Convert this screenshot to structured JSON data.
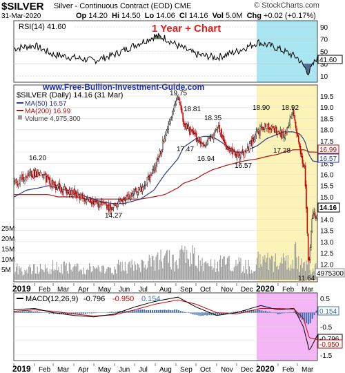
{
  "header": {
    "symbol": "$SILVER",
    "subtitle": "Silver - Continuous Contract (EOD)  CME",
    "brand": "© StockCharts.com",
    "date": "31-Mar-2020",
    "op_label": "Op",
    "op": "14.20",
    "hi_label": "Hi",
    "hi": "14.50",
    "lo_label": "Lo",
    "lo": "14.06",
    "cl_label": "Cl",
    "cl": "14.16",
    "vol_label": "Vol",
    "vol": "5.0M",
    "chg_label": "Chg",
    "chg": "+0.02 (+0.17%)"
  },
  "rsi_panel": {
    "legend": "RSI(14) 41.60",
    "title": "1 Year + Chart",
    "ticks": [
      "90",
      "70",
      "50",
      "30",
      "10"
    ],
    "current": "41.60"
  },
  "price_panel": {
    "watermark": "www.Free-Bullion-Investment-Guide.com",
    "legend_symbol": "$SILVER (Daily) 14.16 (31 Mar)",
    "legend_ma50": "MA(50) 16.57",
    "legend_ma200": "MA(200) 16.99",
    "legend_volume": "Volume 4,975,300",
    "price_ticks": [
      "19.5",
      "19.0",
      "18.5",
      "18.0",
      "17.5",
      "17.0",
      "16.5",
      "16.0",
      "15.5",
      "15.0",
      "14.5",
      "14.0",
      "13.5",
      "13.0",
      "12.5",
      "12.0"
    ],
    "volume_ticks": [
      "25M",
      "20M",
      "15M",
      "10M",
      "5M"
    ],
    "tag_ma200": "16.99",
    "tag_ma50": "16.57",
    "tag_close": "14.16",
    "tag_volume": "4975300",
    "annotations": [
      "19.75",
      "18.81",
      "18.35",
      "18.90",
      "18.92",
      "17.47",
      "16.94",
      "16.57",
      "17.28",
      "16.20",
      "14.27",
      "11.64"
    ]
  },
  "macd_panel": {
    "legend_label": "MACD(12,26,9)",
    "legend_v1": "-0.796",
    "legend_v2": "-0.950",
    "legend_v3": "0.154",
    "ticks": [
      "0.5",
      "0.0",
      "-0.5",
      "-1.0",
      "-1.5"
    ],
    "tag_hist": "0.154",
    "tag_macd": "-0.796",
    "tag_signal": "-0.950"
  },
  "x_axis_labels": [
    "2019",
    "Feb",
    "Mar",
    "Apr",
    "May",
    "Jun",
    "Jul",
    "Aug",
    "Sep",
    "Oct",
    "Nov",
    "Dec",
    "2020",
    "Feb",
    "Mar"
  ],
  "colors": {
    "up_candle": "#000000",
    "down_candle": "#cc0000",
    "ma50": "#2b3a8c",
    "ma200": "#aa1111",
    "volume_bar": "#9a9a9a",
    "rsi_line": "#000000",
    "rsi_fill_overbought": "#5d7d5d",
    "rsi_fill_oversold": "#4d6a8a",
    "highlight_yellow": "#fcf3b8",
    "highlight_cyan": "#a9e6f2",
    "highlight_magenta": "#f4b6f4",
    "title_red": "#e01e1e",
    "watermark_blue": "#1a2cb8",
    "macd_line": "#000000",
    "signal_line": "#cc0000",
    "macd_hist": "#3d6fb0"
  },
  "chart_data": [
    {
      "type": "line",
      "title": "RSI(14)",
      "ylim": [
        0,
        100
      ],
      "x": [
        "2019-01-02",
        "2019-02-01",
        "2019-03-01",
        "2019-04-01",
        "2019-05-01",
        "2019-06-01",
        "2019-07-01",
        "2019-08-01",
        "2019-08-15",
        "2019-09-03",
        "2019-10-01",
        "2019-11-01",
        "2019-12-01",
        "2020-01-02",
        "2020-02-01",
        "2020-03-01",
        "2020-03-18",
        "2020-03-31"
      ],
      "series": [
        {
          "name": "RSI(14)",
          "values": [
            55,
            60,
            45,
            40,
            35,
            45,
            60,
            75,
            72,
            60,
            45,
            40,
            50,
            65,
            55,
            40,
            15,
            41.6
          ]
        }
      ]
    },
    {
      "type": "line",
      "title": "$SILVER (Daily) 14.16 (31 Mar)",
      "ylim": [
        11.3,
        19.9
      ],
      "x": [
        "2019-01-02",
        "2019-01-20",
        "2019-02-08",
        "2019-02-22",
        "2019-03-08",
        "2019-04-01",
        "2019-04-20",
        "2019-05-10",
        "2019-05-28",
        "2019-06-15",
        "2019-07-10",
        "2019-07-30",
        "2019-08-15",
        "2019-09-04",
        "2019-09-12",
        "2019-10-01",
        "2019-10-12",
        "2019-10-25",
        "2019-11-05",
        "2019-11-15",
        "2019-11-28",
        "2019-12-12",
        "2020-01-02",
        "2020-01-15",
        "2020-02-01",
        "2020-02-10",
        "2020-02-24",
        "2020-03-05",
        "2020-03-12",
        "2020-03-18",
        "2020-03-24",
        "2020-03-31"
      ],
      "series": [
        {
          "name": "$SILVER",
          "values": [
            15.6,
            15.9,
            16.1,
            15.7,
            15.4,
            15.2,
            14.9,
            14.6,
            14.5,
            14.9,
            15.3,
            16.2,
            17.6,
            19.5,
            18.3,
            17.6,
            17.4,
            17.6,
            18.1,
            17.1,
            16.9,
            16.9,
            17.9,
            18.2,
            17.9,
            17.7,
            18.9,
            17.0,
            16.3,
            11.8,
            14.3,
            14.16
          ]
        },
        {
          "name": "MA(50)",
          "values": [
            15.0,
            15.3,
            15.4,
            15.5,
            15.4,
            15.2,
            15.0,
            14.8,
            14.7,
            14.7,
            14.9,
            15.3,
            16.0,
            16.7,
            17.2,
            17.6,
            17.7,
            17.7,
            17.5,
            17.3,
            17.0,
            17.0,
            17.3,
            17.6,
            17.8,
            17.9,
            17.9,
            17.8,
            17.5,
            16.9,
            16.6,
            16.57
          ]
        },
        {
          "name": "MA(200)",
          "values": [
            15.1,
            15.1,
            15.1,
            15.1,
            15.0,
            15.0,
            14.9,
            14.9,
            14.9,
            14.9,
            14.9,
            15.0,
            15.1,
            15.4,
            15.6,
            15.8,
            16.0,
            16.2,
            16.3,
            16.4,
            16.5,
            16.6,
            16.7,
            16.8,
            16.9,
            17.0,
            17.1,
            17.1,
            17.1,
            17.0,
            17.0,
            16.99
          ]
        }
      ]
    },
    {
      "type": "bar",
      "title": "Volume 4,975,300",
      "ylim": [
        0,
        30000000
      ],
      "categories": [
        "Jan",
        "Feb",
        "Mar",
        "Apr",
        "May",
        "Jun",
        "Jul",
        "Aug",
        "Sep",
        "Oct",
        "Nov",
        "Dec",
        "Jan 2020",
        "Feb 2020",
        "Mar 2020"
      ],
      "values": [
        5000000,
        6000000,
        5500000,
        5000000,
        4500000,
        6500000,
        8000000,
        10000000,
        11000000,
        7500000,
        8000000,
        7000000,
        9000000,
        8000000,
        4975300
      ]
    },
    {
      "type": "line",
      "title": "MACD(12,26,9)",
      "ylim": [
        -1.7,
        0.7
      ],
      "x": [
        "2019-01-02",
        "2019-02-01",
        "2019-03-01",
        "2019-04-01",
        "2019-05-01",
        "2019-06-01",
        "2019-07-01",
        "2019-08-01",
        "2019-09-04",
        "2019-10-01",
        "2019-11-01",
        "2019-12-01",
        "2020-01-06",
        "2020-02-01",
        "2020-02-25",
        "2020-03-10",
        "2020-03-19",
        "2020-03-31"
      ],
      "series": [
        {
          "name": "MACD",
          "values": [
            0.1,
            0.15,
            0.0,
            -0.1,
            -0.15,
            -0.05,
            0.2,
            0.4,
            0.55,
            0.2,
            -0.1,
            0.0,
            0.25,
            0.1,
            0.15,
            -0.5,
            -1.35,
            -0.796
          ]
        },
        {
          "name": "Signal",
          "values": [
            0.05,
            0.1,
            0.05,
            -0.05,
            -0.12,
            -0.08,
            0.1,
            0.3,
            0.45,
            0.3,
            0.0,
            -0.05,
            0.15,
            0.15,
            0.12,
            -0.2,
            -0.9,
            -0.95
          ]
        },
        {
          "name": "Histogram",
          "values": [
            0.05,
            0.05,
            -0.05,
            -0.05,
            -0.03,
            0.03,
            0.1,
            0.1,
            0.1,
            -0.1,
            -0.1,
            0.05,
            0.1,
            -0.05,
            0.03,
            -0.3,
            -0.45,
            0.154
          ]
        }
      ]
    }
  ]
}
